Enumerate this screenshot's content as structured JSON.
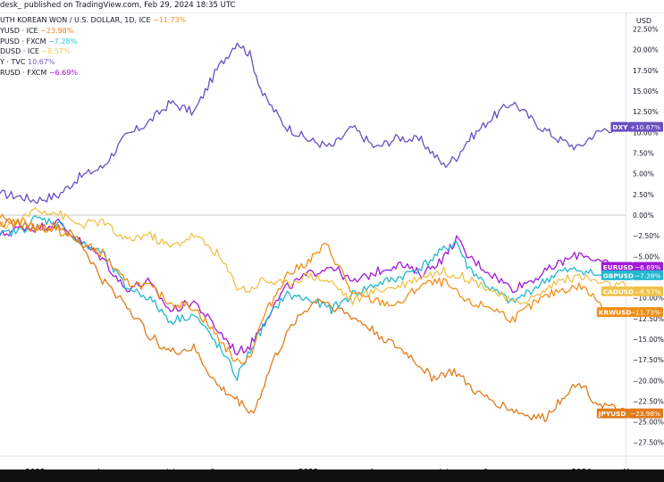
{
  "header": {
    "publisher_text": "desk_ published on TradingView.com, Feb 29, 2024 18:35 UTC"
  },
  "legend": [
    {
      "label": "UTH KOREAN WON / U.S. DOLLAR, 1D, ICE",
      "value": "−11.73%",
      "color": "#f7931a"
    },
    {
      "label": "YUSD · ICE",
      "value": "−23.98%",
      "color": "#e8811c"
    },
    {
      "label": "PUSD · FXCM",
      "value": "−7.28%",
      "color": "#26c6da"
    },
    {
      "label": "DUSD · ICE",
      "value": "−8.57%",
      "color": "#f2c94c"
    },
    {
      "label": "Y · TVC",
      "value": "10.67%",
      "color": "#7b61c6"
    },
    {
      "label": "RUSD · FXCM",
      "value": "−6.69%",
      "color": "#b000d8"
    }
  ],
  "axis_corner_label": "USD",
  "chart_data": {
    "type": "line",
    "x_tick_labels": [
      "2022",
      "Apr",
      "Jul",
      "Sep",
      "2023",
      "Apr",
      "Jul",
      "Sep",
      "2024",
      "M"
    ],
    "y_tick_labels": [
      "22.50%",
      "20.00%",
      "17.50%",
      "15.00%",
      "12.50%",
      "10.00%",
      "7.50%",
      "5.00%",
      "2.50%",
      "0.00%",
      "−2.50%",
      "−5.00%",
      "−7.50%",
      "−10.00%",
      "−12.50%",
      "−15.00%",
      "−17.50%",
      "−20.00%",
      "−22.50%",
      "−25.00%",
      "−27.50%"
    ],
    "ylim": [
      -28.5,
      24.5
    ],
    "xlim": [
      "2021-11-15",
      "2024-02-29"
    ],
    "series": [
      {
        "name": "DXY",
        "tag": "DXY",
        "tag_value": "+10.67%",
        "color": "#6a4fc2",
        "points": [
          [
            "2021-11-15",
            2.6
          ],
          [
            "2021-12-15",
            2.2
          ],
          [
            "2022-01-01",
            1.8
          ],
          [
            "2022-02-01",
            2.4
          ],
          [
            "2022-03-01",
            4.6
          ],
          [
            "2022-04-01",
            5.8
          ],
          [
            "2022-05-01",
            9.4
          ],
          [
            "2022-06-01",
            11.2
          ],
          [
            "2022-07-01",
            13.6
          ],
          [
            "2022-08-01",
            12.4
          ],
          [
            "2022-09-01",
            17.6
          ],
          [
            "2022-09-28",
            21.0
          ],
          [
            "2022-10-15",
            19.4
          ],
          [
            "2022-11-01",
            14.6
          ],
          [
            "2022-12-01",
            10.8
          ],
          [
            "2023-01-01",
            9.1
          ],
          [
            "2023-02-01",
            8.2
          ],
          [
            "2023-03-01",
            10.6
          ],
          [
            "2023-04-01",
            8.1
          ],
          [
            "2023-05-01",
            9.4
          ],
          [
            "2023-06-01",
            9.0
          ],
          [
            "2023-07-01",
            6.0
          ],
          [
            "2023-07-18",
            7.0
          ],
          [
            "2023-08-01",
            8.9
          ],
          [
            "2023-09-01",
            11.6
          ],
          [
            "2023-10-01",
            13.7
          ],
          [
            "2023-11-01",
            11.1
          ],
          [
            "2023-12-01",
            9.2
          ],
          [
            "2023-12-28",
            8.1
          ],
          [
            "2024-01-15",
            9.6
          ],
          [
            "2024-02-01",
            10.4
          ],
          [
            "2024-02-29",
            10.67
          ]
        ]
      },
      {
        "name": "EURUSD",
        "tag": "EURUSD",
        "tag_value": "−6.69%",
        "color": "#a21ad6",
        "points": [
          [
            "2021-11-15",
            -2.5
          ],
          [
            "2021-12-15",
            -1.4
          ],
          [
            "2022-01-01",
            -1.6
          ],
          [
            "2022-02-01",
            -0.9
          ],
          [
            "2022-03-01",
            -3.1
          ],
          [
            "2022-04-01",
            -5.2
          ],
          [
            "2022-05-01",
            -8.9
          ],
          [
            "2022-06-01",
            -8.1
          ],
          [
            "2022-07-01",
            -11.6
          ],
          [
            "2022-08-01",
            -10.4
          ],
          [
            "2022-09-01",
            -13.8
          ],
          [
            "2022-09-28",
            -16.6
          ],
          [
            "2022-10-15",
            -15.8
          ],
          [
            "2022-11-01",
            -13.1
          ],
          [
            "2022-12-01",
            -8.9
          ],
          [
            "2023-01-01",
            -7.2
          ],
          [
            "2023-02-01",
            -6.1
          ],
          [
            "2023-03-01",
            -8.2
          ],
          [
            "2023-04-01",
            -6.9
          ],
          [
            "2023-05-01",
            -5.9
          ],
          [
            "2023-06-01",
            -7.1
          ],
          [
            "2023-07-01",
            -5.2
          ],
          [
            "2023-07-18",
            -2.8
          ],
          [
            "2023-08-01",
            -4.9
          ],
          [
            "2023-09-01",
            -7.0
          ],
          [
            "2023-10-01",
            -8.9
          ],
          [
            "2023-11-01",
            -7.6
          ],
          [
            "2023-12-01",
            -5.9
          ],
          [
            "2024-01-01",
            -4.6
          ],
          [
            "2024-02-01",
            -5.9
          ],
          [
            "2024-02-29",
            -6.69
          ]
        ]
      },
      {
        "name": "GBPUSD",
        "tag": "GBPUSD",
        "tag_value": "−7.28%",
        "color": "#22b8cf",
        "points": [
          [
            "2021-11-15",
            -2.4
          ],
          [
            "2021-12-15",
            -1.8
          ],
          [
            "2022-01-01",
            -0.4
          ],
          [
            "2022-02-01",
            -0.9
          ],
          [
            "2022-03-01",
            -3.4
          ],
          [
            "2022-04-01",
            -4.6
          ],
          [
            "2022-05-01",
            -8.6
          ],
          [
            "2022-06-01",
            -9.9
          ],
          [
            "2022-07-01",
            -12.8
          ],
          [
            "2022-08-01",
            -12.0
          ],
          [
            "2022-09-01",
            -15.6
          ],
          [
            "2022-09-28",
            -19.6
          ],
          [
            "2022-10-15",
            -16.4
          ],
          [
            "2022-11-01",
            -13.6
          ],
          [
            "2022-12-01",
            -9.6
          ],
          [
            "2023-01-01",
            -10.2
          ],
          [
            "2023-02-01",
            -11.4
          ],
          [
            "2023-03-01",
            -9.6
          ],
          [
            "2023-04-01",
            -8.4
          ],
          [
            "2023-05-01",
            -7.6
          ],
          [
            "2023-06-01",
            -6.3
          ],
          [
            "2023-07-01",
            -4.2
          ],
          [
            "2023-07-18",
            -3.2
          ],
          [
            "2023-08-01",
            -6.1
          ],
          [
            "2023-09-01",
            -8.9
          ],
          [
            "2023-10-01",
            -10.6
          ],
          [
            "2023-11-01",
            -8.7
          ],
          [
            "2023-12-01",
            -6.9
          ],
          [
            "2024-01-01",
            -6.6
          ],
          [
            "2024-02-01",
            -7.6
          ],
          [
            "2024-02-29",
            -7.28
          ]
        ]
      },
      {
        "name": "CADUSD",
        "tag": "CADUSD",
        "tag_value": "−8.57%",
        "color": "#f0c24a",
        "points": [
          [
            "2021-11-15",
            -1.4
          ],
          [
            "2021-12-15",
            -0.6
          ],
          [
            "2022-01-01",
            0.8
          ],
          [
            "2022-02-01",
            0.2
          ],
          [
            "2022-03-01",
            -1.2
          ],
          [
            "2022-04-01",
            -0.8
          ],
          [
            "2022-05-01",
            -3.1
          ],
          [
            "2022-06-01",
            -2.3
          ],
          [
            "2022-07-01",
            -3.9
          ],
          [
            "2022-08-01",
            -2.4
          ],
          [
            "2022-09-01",
            -4.6
          ],
          [
            "2022-09-28",
            -8.6
          ],
          [
            "2022-10-15",
            -9.1
          ],
          [
            "2022-11-01",
            -7.8
          ],
          [
            "2022-12-01",
            -8.4
          ],
          [
            "2023-01-01",
            -7.2
          ],
          [
            "2023-02-01",
            -8.1
          ],
          [
            "2023-03-01",
            -10.4
          ],
          [
            "2023-04-01",
            -9.1
          ],
          [
            "2023-05-01",
            -8.6
          ],
          [
            "2023-06-01",
            -7.4
          ],
          [
            "2023-07-01",
            -6.8
          ],
          [
            "2023-08-01",
            -7.6
          ],
          [
            "2023-09-01",
            -8.9
          ],
          [
            "2023-10-01",
            -10.7
          ],
          [
            "2023-11-01",
            -9.9
          ],
          [
            "2023-12-01",
            -7.9
          ],
          [
            "2024-01-01",
            -7.4
          ],
          [
            "2024-02-01",
            -8.4
          ],
          [
            "2024-02-29",
            -8.57
          ]
        ]
      },
      {
        "name": "KRWUSD",
        "tag": "KRWUSD",
        "tag_value": "−11.73%",
        "color": "#f28e16",
        "points": [
          [
            "2021-11-15",
            -0.4
          ],
          [
            "2021-12-15",
            -0.9
          ],
          [
            "2022-01-01",
            -1.4
          ],
          [
            "2022-02-01",
            -1.9
          ],
          [
            "2022-03-01",
            -3.4
          ],
          [
            "2022-04-01",
            -4.6
          ],
          [
            "2022-05-01",
            -8.1
          ],
          [
            "2022-06-01",
            -8.6
          ],
          [
            "2022-07-01",
            -10.6
          ],
          [
            "2022-08-01",
            -11.1
          ],
          [
            "2022-09-01",
            -14.6
          ],
          [
            "2022-09-28",
            -17.9
          ],
          [
            "2022-10-15",
            -17.1
          ],
          [
            "2022-11-01",
            -12.6
          ],
          [
            "2022-12-01",
            -7.4
          ],
          [
            "2023-01-01",
            -5.6
          ],
          [
            "2023-01-25",
            -3.6
          ],
          [
            "2023-02-15",
            -6.9
          ],
          [
            "2023-03-01",
            -9.6
          ],
          [
            "2023-04-01",
            -10.4
          ],
          [
            "2023-05-01",
            -10.9
          ],
          [
            "2023-06-01",
            -8.4
          ],
          [
            "2023-07-01",
            -8.1
          ],
          [
            "2023-08-01",
            -10.6
          ],
          [
            "2023-09-01",
            -11.1
          ],
          [
            "2023-10-01",
            -12.6
          ],
          [
            "2023-11-01",
            -10.6
          ],
          [
            "2023-12-01",
            -9.1
          ],
          [
            "2024-01-01",
            -8.6
          ],
          [
            "2024-02-01",
            -11.1
          ],
          [
            "2024-02-29",
            -11.73
          ]
        ]
      },
      {
        "name": "JPYUSD",
        "tag": "JPYUSD",
        "tag_value": "−23.98%",
        "color": "#e07b1a",
        "points": [
          [
            "2021-11-15",
            -0.8
          ],
          [
            "2021-12-15",
            -1.2
          ],
          [
            "2022-01-01",
            -1.6
          ],
          [
            "2022-02-01",
            -1.3
          ],
          [
            "2022-03-01",
            -3.1
          ],
          [
            "2022-04-01",
            -7.9
          ],
          [
            "2022-05-01",
            -10.6
          ],
          [
            "2022-06-01",
            -14.4
          ],
          [
            "2022-07-01",
            -16.6
          ],
          [
            "2022-08-01",
            -16.1
          ],
          [
            "2022-09-01",
            -20.6
          ],
          [
            "2022-10-01",
            -22.6
          ],
          [
            "2022-10-20",
            -23.9
          ],
          [
            "2022-11-15",
            -17.6
          ],
          [
            "2022-12-15",
            -12.6
          ],
          [
            "2023-01-15",
            -10.1
          ],
          [
            "2023-02-15",
            -11.6
          ],
          [
            "2023-03-15",
            -13.1
          ],
          [
            "2023-04-15",
            -15.1
          ],
          [
            "2023-05-15",
            -16.9
          ],
          [
            "2023-06-15",
            -19.6
          ],
          [
            "2023-07-15",
            -18.9
          ],
          [
            "2023-08-15",
            -21.6
          ],
          [
            "2023-09-15",
            -22.9
          ],
          [
            "2023-10-15",
            -24.1
          ],
          [
            "2023-11-13",
            -24.6
          ],
          [
            "2023-12-15",
            -21.1
          ],
          [
            "2024-01-01",
            -20.4
          ],
          [
            "2024-01-20",
            -22.6
          ],
          [
            "2024-02-29",
            -23.98
          ]
        ]
      }
    ]
  }
}
